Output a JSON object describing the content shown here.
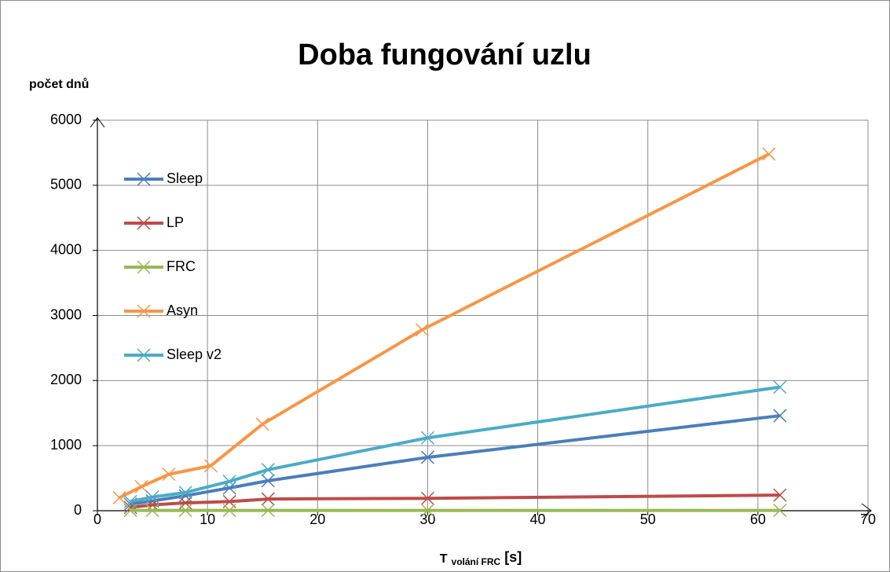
{
  "chart_data": {
    "type": "line",
    "title": "Doba fungování uzlu",
    "ylabel": "počet dnů",
    "xlabel": {
      "main": "T",
      "sub": "volání FRC",
      "unit": "[s]"
    },
    "xlim": [
      0,
      70
    ],
    "xticks": [
      0,
      10,
      20,
      30,
      40,
      50,
      60,
      70
    ],
    "ylim": [
      0,
      6000
    ],
    "yticks": [
      0,
      1000,
      2000,
      3000,
      4000,
      5000,
      6000
    ],
    "grid": true,
    "legend": "upper left",
    "series": [
      {
        "name": "Sleep",
        "color": "#4a7ebb",
        "x": [
          3,
          5,
          8,
          12,
          15.5,
          30,
          62
        ],
        "values": [
          100,
          150,
          230,
          350,
          460,
          820,
          1460
        ]
      },
      {
        "name": "LP",
        "color": "#be4b48",
        "x": [
          3,
          5,
          8,
          12,
          15.5,
          30,
          62
        ],
        "values": [
          50,
          90,
          120,
          140,
          180,
          190,
          240
        ]
      },
      {
        "name": "FRC",
        "color": "#98b954",
        "x": [
          3,
          5,
          8,
          12,
          15.5,
          30,
          62
        ],
        "values": [
          5,
          5,
          5,
          5,
          5,
          5,
          5
        ]
      },
      {
        "name": "Asyn",
        "color": "#f79646",
        "x": [
          2,
          4,
          6.5,
          10.3,
          15,
          29.5,
          61
        ],
        "values": [
          200,
          370,
          560,
          690,
          1330,
          2780,
          5480
        ]
      },
      {
        "name": "Sleep v2",
        "color": "#4bacc6",
        "x": [
          3,
          5,
          8,
          12,
          15.5,
          30,
          62
        ],
        "values": [
          140,
          210,
          280,
          450,
          630,
          1120,
          1900
        ]
      }
    ]
  }
}
